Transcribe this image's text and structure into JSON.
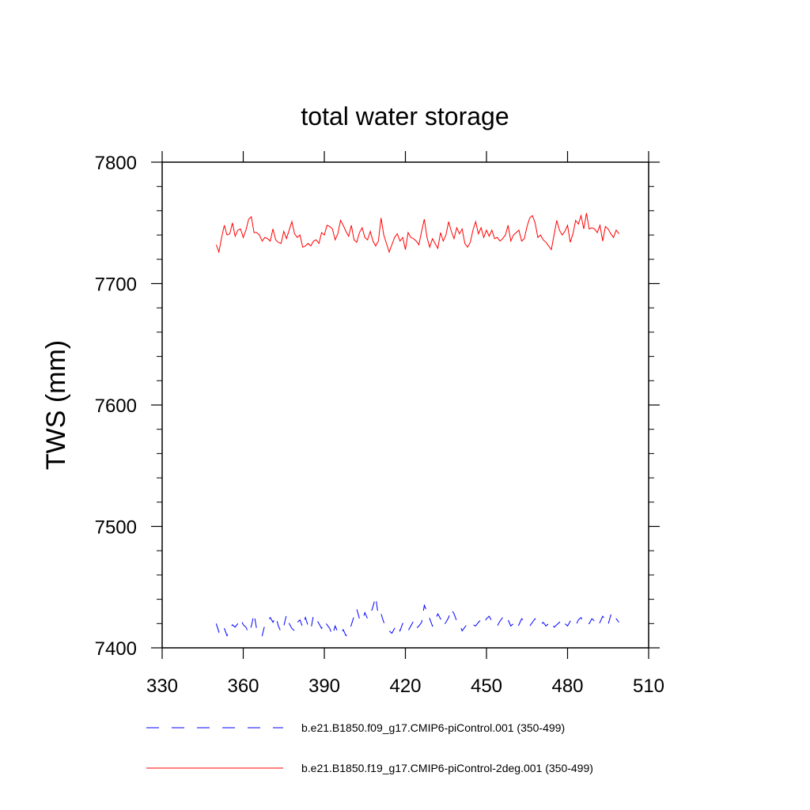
{
  "chart_data": {
    "type": "line",
    "title": "total water storage",
    "xlabel": "",
    "ylabel": "TWS  (mm)",
    "xlim": [
      330,
      510
    ],
    "ylim": [
      7400,
      7800
    ],
    "xticks": [
      330,
      360,
      390,
      420,
      450,
      480,
      510
    ],
    "xtick_labels": [
      "330",
      "360",
      "390",
      "420",
      "450",
      "480",
      "510"
    ],
    "yticks": [
      7400,
      7500,
      7600,
      7700,
      7800
    ],
    "ytick_labels": [
      "7400",
      "7500",
      "7600",
      "7700",
      "7800"
    ],
    "grid": false,
    "legend_position": "bottom",
    "series": [
      {
        "name": "b.e21.B1850.f09_g17.CMIP6-piControl.001 (350-499)",
        "color": "#0000ff",
        "style": "dashed",
        "x_start": 350,
        "x_step": 1,
        "values": [
          7420,
          7413,
          7418,
          7416,
          7410,
          7416,
          7419,
          7417,
          7420,
          7424,
          7419,
          7417,
          7412,
          7418,
          7428,
          7415,
          7412,
          7410,
          7419,
          7422,
          7425,
          7421,
          7426,
          7418,
          7413,
          7418,
          7427,
          7420,
          7416,
          7414,
          7421,
          7423,
          7417,
          7425,
          7418,
          7415,
          7427,
          7424,
          7420,
          7416,
          7422,
          7419,
          7416,
          7410,
          7418,
          7413,
          7411,
          7415,
          7410,
          7412,
          7419,
          7426,
          7432,
          7424,
          7422,
          7429,
          7424,
          7427,
          7434,
          7442,
          7426,
          7428,
          7421,
          7418,
          7414,
          7412,
          7416,
          7419,
          7414,
          7420,
          7418,
          7414,
          7418,
          7422,
          7416,
          7418,
          7421,
          7435,
          7430,
          7424,
          7418,
          7423,
          7428,
          7424,
          7418,
          7421,
          7425,
          7432,
          7428,
          7422,
          7419,
          7414,
          7417,
          7420,
          7421,
          7419,
          7418,
          7421,
          7423,
          7420,
          7424,
          7426,
          7422,
          7419,
          7418,
          7422,
          7425,
          7421,
          7423,
          7418,
          7420,
          7416,
          7419,
          7424,
          7422,
          7420,
          7418,
          7421,
          7424,
          7420,
          7419,
          7421,
          7418,
          7420,
          7422,
          7417,
          7419,
          7421,
          7424,
          7420,
          7418,
          7422,
          7420,
          7418,
          7423,
          7425,
          7421,
          7419,
          7420,
          7424,
          7422,
          7418,
          7421,
          7426,
          7423,
          7419,
          7427,
          7422,
          7424,
          7421
        ]
      },
      {
        "name": "b.e21.B1850.f19_g17.CMIP6-piControl-2deg.001 (350-499)",
        "color": "#ff0000",
        "style": "solid",
        "x_start": 350,
        "x_step": 1,
        "values": [
          7732,
          7726,
          7738,
          7748,
          7740,
          7741,
          7750,
          7739,
          7744,
          7745,
          7738,
          7744,
          7753,
          7755,
          7742,
          7742,
          7740,
          7735,
          7738,
          7737,
          7735,
          7745,
          7736,
          7734,
          7733,
          7743,
          7737,
          7744,
          7751,
          7741,
          7738,
          7740,
          7730,
          7731,
          7733,
          7731,
          7735,
          7736,
          7733,
          7742,
          7740,
          7748,
          7747,
          7745,
          7736,
          7741,
          7752,
          7748,
          7743,
          7739,
          7748,
          7736,
          7734,
          7742,
          7746,
          7738,
          7736,
          7743,
          7735,
          7731,
          7735,
          7754,
          7740,
          7733,
          7726,
          7732,
          7738,
          7741,
          7735,
          7738,
          7728,
          7742,
          7738,
          7737,
          7735,
          7732,
          7743,
          7753,
          7738,
          7730,
          7737,
          7733,
          7729,
          7742,
          7735,
          7740,
          7751,
          7743,
          7737,
          7746,
          7741,
          7745,
          7733,
          7730,
          7734,
          7744,
          7751,
          7741,
          7746,
          7738,
          7744,
          7739,
          7744,
          7737,
          7738,
          7735,
          7737,
          7740,
          7748,
          7735,
          7740,
          7742,
          7744,
          7735,
          7737,
          7747,
          7754,
          7756,
          7750,
          7738,
          7740,
          7736,
          7734,
          7731,
          7728,
          7740,
          7752,
          7744,
          7740,
          7743,
          7748,
          7734,
          7741,
          7752,
          7749,
          7756,
          7745,
          7758,
          7745,
          7746,
          7745,
          7742,
          7748,
          7735,
          7747,
          7745,
          7741,
          7738,
          7744,
          7741
        ]
      }
    ]
  }
}
